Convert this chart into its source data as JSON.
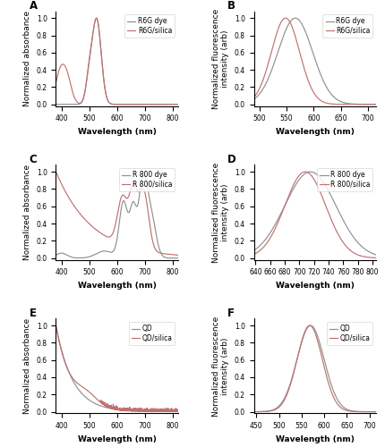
{
  "panel_A": {
    "label": "A",
    "xlabel": "Wavelength (nm)",
    "ylabel": "Normalized absorbance",
    "xlim": [
      380,
      820
    ],
    "ylim": [
      -0.02,
      1.08
    ],
    "xticks": [
      400,
      500,
      600,
      700,
      800
    ],
    "yticks": [
      0.0,
      0.2,
      0.4,
      0.6,
      0.8,
      1.0
    ],
    "legend": [
      "R6G dye",
      "R6G/silica"
    ],
    "line_colors": [
      "#909090",
      "#c07070"
    ]
  },
  "panel_B": {
    "label": "B",
    "xlabel": "Wavelength (nm)",
    "ylabel": "Normalized fluorescence\nintensity (arb)",
    "xlim": [
      490,
      715
    ],
    "ylim": [
      -0.02,
      1.08
    ],
    "xticks": [
      500,
      550,
      600,
      650,
      700
    ],
    "yticks": [
      0.0,
      0.2,
      0.4,
      0.6,
      0.8,
      1.0
    ],
    "legend": [
      "R6G dye",
      "R6G/silica"
    ],
    "line_colors": [
      "#909090",
      "#c07070"
    ]
  },
  "panel_C": {
    "label": "C",
    "xlabel": "Wavelength (nm)",
    "ylabel": "Normalized absorbance",
    "xlim": [
      380,
      820
    ],
    "ylim": [
      -0.02,
      1.08
    ],
    "xticks": [
      400,
      500,
      600,
      700,
      800
    ],
    "yticks": [
      0.0,
      0.2,
      0.4,
      0.6,
      0.8,
      1.0
    ],
    "legend": [
      "R 800 dye",
      "R 800/silica"
    ],
    "line_colors": [
      "#909090",
      "#c07070"
    ]
  },
  "panel_D": {
    "label": "D",
    "xlabel": "Wavelength (nm)",
    "ylabel": "Normalized fluorescence\nintensity (arb)",
    "xlim": [
      638,
      805
    ],
    "ylim": [
      -0.02,
      1.08
    ],
    "xticks": [
      640,
      660,
      680,
      700,
      720,
      740,
      760,
      780,
      800
    ],
    "yticks": [
      0.0,
      0.2,
      0.4,
      0.6,
      0.8,
      1.0
    ],
    "legend": [
      "R 800 dye",
      "R 800/silica"
    ],
    "line_colors": [
      "#909090",
      "#c07070"
    ]
  },
  "panel_E": {
    "label": "E",
    "xlabel": "Wavelength (nm)",
    "ylabel": "Normalized absorbance",
    "xlim": [
      380,
      820
    ],
    "ylim": [
      -0.02,
      1.08
    ],
    "xticks": [
      400,
      500,
      600,
      700,
      800
    ],
    "yticks": [
      0.0,
      0.2,
      0.4,
      0.6,
      0.8,
      1.0
    ],
    "legend": [
      "QD",
      "QD/silica"
    ],
    "line_colors": [
      "#909090",
      "#c07070"
    ]
  },
  "panel_F": {
    "label": "F",
    "xlabel": "Wavelength (nm)",
    "ylabel": "Normalized fluorescence\nintensity (arb)",
    "xlim": [
      445,
      715
    ],
    "ylim": [
      -0.02,
      1.08
    ],
    "xticks": [
      450,
      500,
      550,
      600,
      650,
      700
    ],
    "yticks": [
      0.0,
      0.2,
      0.4,
      0.6,
      0.8,
      1.0
    ],
    "legend": [
      "QD",
      "QD/silica"
    ],
    "line_colors": [
      "#909090",
      "#c07070"
    ]
  },
  "gray_color": "#909090",
  "red_color": "#c07070",
  "bg_color": "#ffffff"
}
